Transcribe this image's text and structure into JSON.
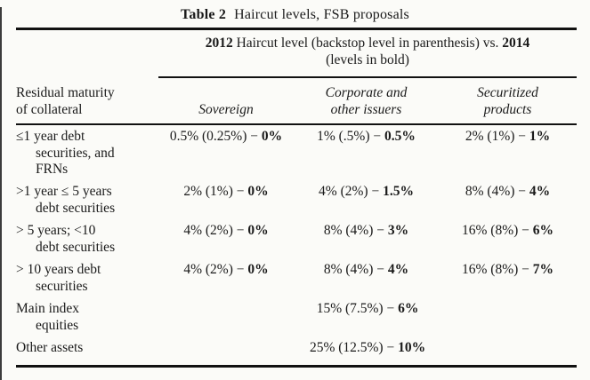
{
  "title": {
    "label": "Table 2",
    "text": "Haircut levels, FSB proposals"
  },
  "span_header": {
    "y2012": "2012",
    "mid": " Haircut level (backstop level in parenthesis) vs. ",
    "y2014": "2014",
    "line2": "(levels in bold)"
  },
  "columns": {
    "stub": "Residual maturity\nof collateral",
    "sovereign": "Sovereign",
    "corporate": "Corporate and\nother issuers",
    "securitized": "Securitized\nproducts"
  },
  "rows": [
    {
      "label": "≤1 year debt\nsecurities, and\nFRNs",
      "cells": [
        {
          "pre": "0.5% (0.25%) − ",
          "bold": "0%"
        },
        {
          "pre": "1% (.5%) − ",
          "bold": "0.5%"
        },
        {
          "pre": "2% (1%) − ",
          "bold": "1%"
        }
      ]
    },
    {
      "label": ">1 year ≤ 5 years\ndebt securities",
      "cells": [
        {
          "pre": "2% (1%) − ",
          "bold": "0%"
        },
        {
          "pre": "4% (2%) − ",
          "bold": "1.5%"
        },
        {
          "pre": "8% (4%) − ",
          "bold": "4%"
        }
      ]
    },
    {
      "label": "> 5 years; <10\ndebt securities",
      "cells": [
        {
          "pre": "4% (2%) − ",
          "bold": "0%"
        },
        {
          "pre": "8% (4%) − ",
          "bold": "3%"
        },
        {
          "pre": "16% (8%) − ",
          "bold": "6%"
        }
      ]
    },
    {
      "label": "> 10 years debt\nsecurities",
      "cells": [
        {
          "pre": "4% (2%) − ",
          "bold": "0%"
        },
        {
          "pre": "8% (4%) − ",
          "bold": "4%"
        },
        {
          "pre": "16% (8%) − ",
          "bold": "7%"
        }
      ]
    },
    {
      "label": "Main index\nequities",
      "span_cell": {
        "pre": "15% (7.5%) − ",
        "bold": "6%"
      }
    },
    {
      "label": "Other assets",
      "span_cell": {
        "pre": "25% (12.5%) − ",
        "bold": "10%"
      }
    }
  ]
}
